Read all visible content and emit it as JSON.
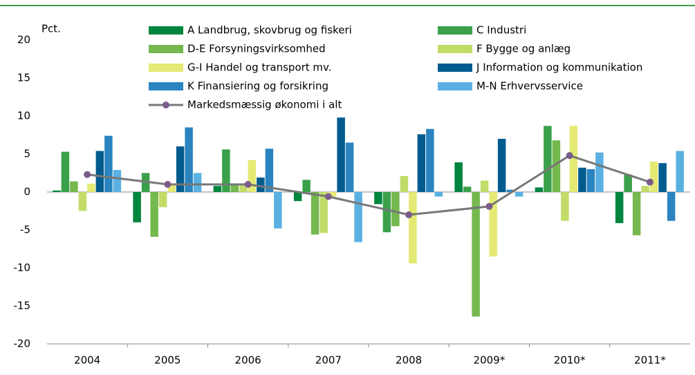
{
  "chart_data": {
    "type": "bar",
    "y_label": "Pct.",
    "categories": [
      "2004",
      "2005",
      "2006",
      "2007",
      "2008",
      "2009*",
      "2010*",
      "2011*"
    ],
    "ylim": [
      -20,
      20
    ],
    "yticks": [
      -20,
      -15,
      -10,
      -5,
      0,
      5,
      10,
      15,
      20
    ],
    "grid": false,
    "series": [
      {
        "name": "A Landbrug, skovbrug og fiskeri",
        "color": "#00853f",
        "values": [
          0.2,
          -4.0,
          0.8,
          -1.2,
          -1.6,
          3.9,
          0.6,
          -4.1
        ]
      },
      {
        "name": "C Industri",
        "color": "#3aa14a",
        "values": [
          5.3,
          2.5,
          5.6,
          1.6,
          -5.3,
          0.7,
          8.7,
          2.3
        ]
      },
      {
        "name": "D-E Forsyningsvirksomhed",
        "color": "#74b84e",
        "values": [
          1.4,
          -5.9,
          1.0,
          -5.6,
          -4.5,
          -16.4,
          6.8,
          -5.7
        ]
      },
      {
        "name": "F Bygge og anlæg",
        "color": "#c2dc68",
        "values": [
          -2.5,
          -2.0,
          0.9,
          -5.4,
          2.1,
          1.5,
          -3.8,
          0.8
        ]
      },
      {
        "name": "G-I Handel og transport mv.",
        "color": "#e4ea74",
        "values": [
          1.1,
          1.0,
          4.2,
          -0.6,
          -9.4,
          -8.5,
          8.7,
          4.0
        ]
      },
      {
        "name": "J Information og kommunikation",
        "color": "#005b8e",
        "values": [
          5.4,
          6.0,
          1.9,
          9.8,
          7.6,
          7.0,
          3.2,
          3.8
        ]
      },
      {
        "name": "K Finansiering og forsikring",
        "color": "#2a84c0",
        "values": [
          7.4,
          8.5,
          5.7,
          6.5,
          8.3,
          0.3,
          3.0,
          -3.8
        ]
      },
      {
        "name": "M-N Erhvervsservice",
        "color": "#5bb0e2",
        "values": [
          2.9,
          2.5,
          -4.8,
          -6.6,
          -0.6,
          -0.6,
          5.2,
          5.4
        ]
      },
      {
        "name": "Markedsmæssig økonomi i alt",
        "type": "line",
        "color": "#7a5c8c",
        "values": [
          2.3,
          1.0,
          1.0,
          -0.6,
          -3.0,
          -1.9,
          4.8,
          1.3
        ]
      }
    ]
  }
}
